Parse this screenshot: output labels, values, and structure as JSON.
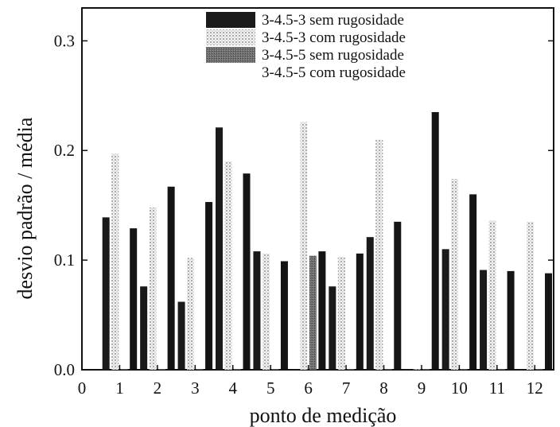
{
  "chart_data": {
    "type": "bar",
    "xlabel": "ponto de medição",
    "ylabel": "desvio padrão / média",
    "x_ticks": [
      "0",
      "1",
      "2",
      "3",
      "4",
      "5",
      "6",
      "7",
      "8",
      "9",
      "10",
      "11",
      "12"
    ],
    "y_ticks": [
      "0.0",
      "0.1",
      "0.2",
      "0.3"
    ],
    "xlim": [
      0,
      12.5
    ],
    "ylim": [
      0,
      0.33
    ],
    "categories": [
      1,
      2,
      3,
      4,
      5,
      6,
      7,
      8,
      9,
      10,
      11,
      12
    ],
    "legend_position": "top-center",
    "series": [
      {
        "name": "3-4.5-3  sem rugosidade",
        "color": "#1a1a1a",
        "pattern": "solid",
        "values": [
          0.139,
          0.076,
          0.062,
          0.221,
          0.108,
          0.0,
          0.076,
          0.121,
          0.0,
          0.11,
          0.091,
          0.0
        ]
      },
      {
        "name": "3-4.5-3  com rugosidade",
        "color": "#e8e8e8",
        "pattern": "dots",
        "values": [
          0.197,
          0.148,
          0.102,
          0.19,
          0.106,
          0.226,
          0.103,
          0.21,
          0.0,
          0.174,
          0.136,
          0.135
        ]
      },
      {
        "name": "3-4.5-5  sem rugosidade",
        "color": "#6e6e6e",
        "pattern": "grey",
        "values": [
          0.0,
          0.0,
          0.0,
          0.0,
          0.0,
          0.104,
          0.0,
          0.0,
          0.0,
          0.0,
          0.0,
          0.0
        ]
      },
      {
        "name": "3-4.5-5  com rugosidade",
        "color": "#141414",
        "pattern": "solid",
        "values": [
          0.129,
          0.167,
          0.153,
          0.179,
          0.099,
          0.108,
          0.106,
          0.135,
          0.235,
          0.16,
          0.09,
          0.088
        ]
      }
    ]
  }
}
